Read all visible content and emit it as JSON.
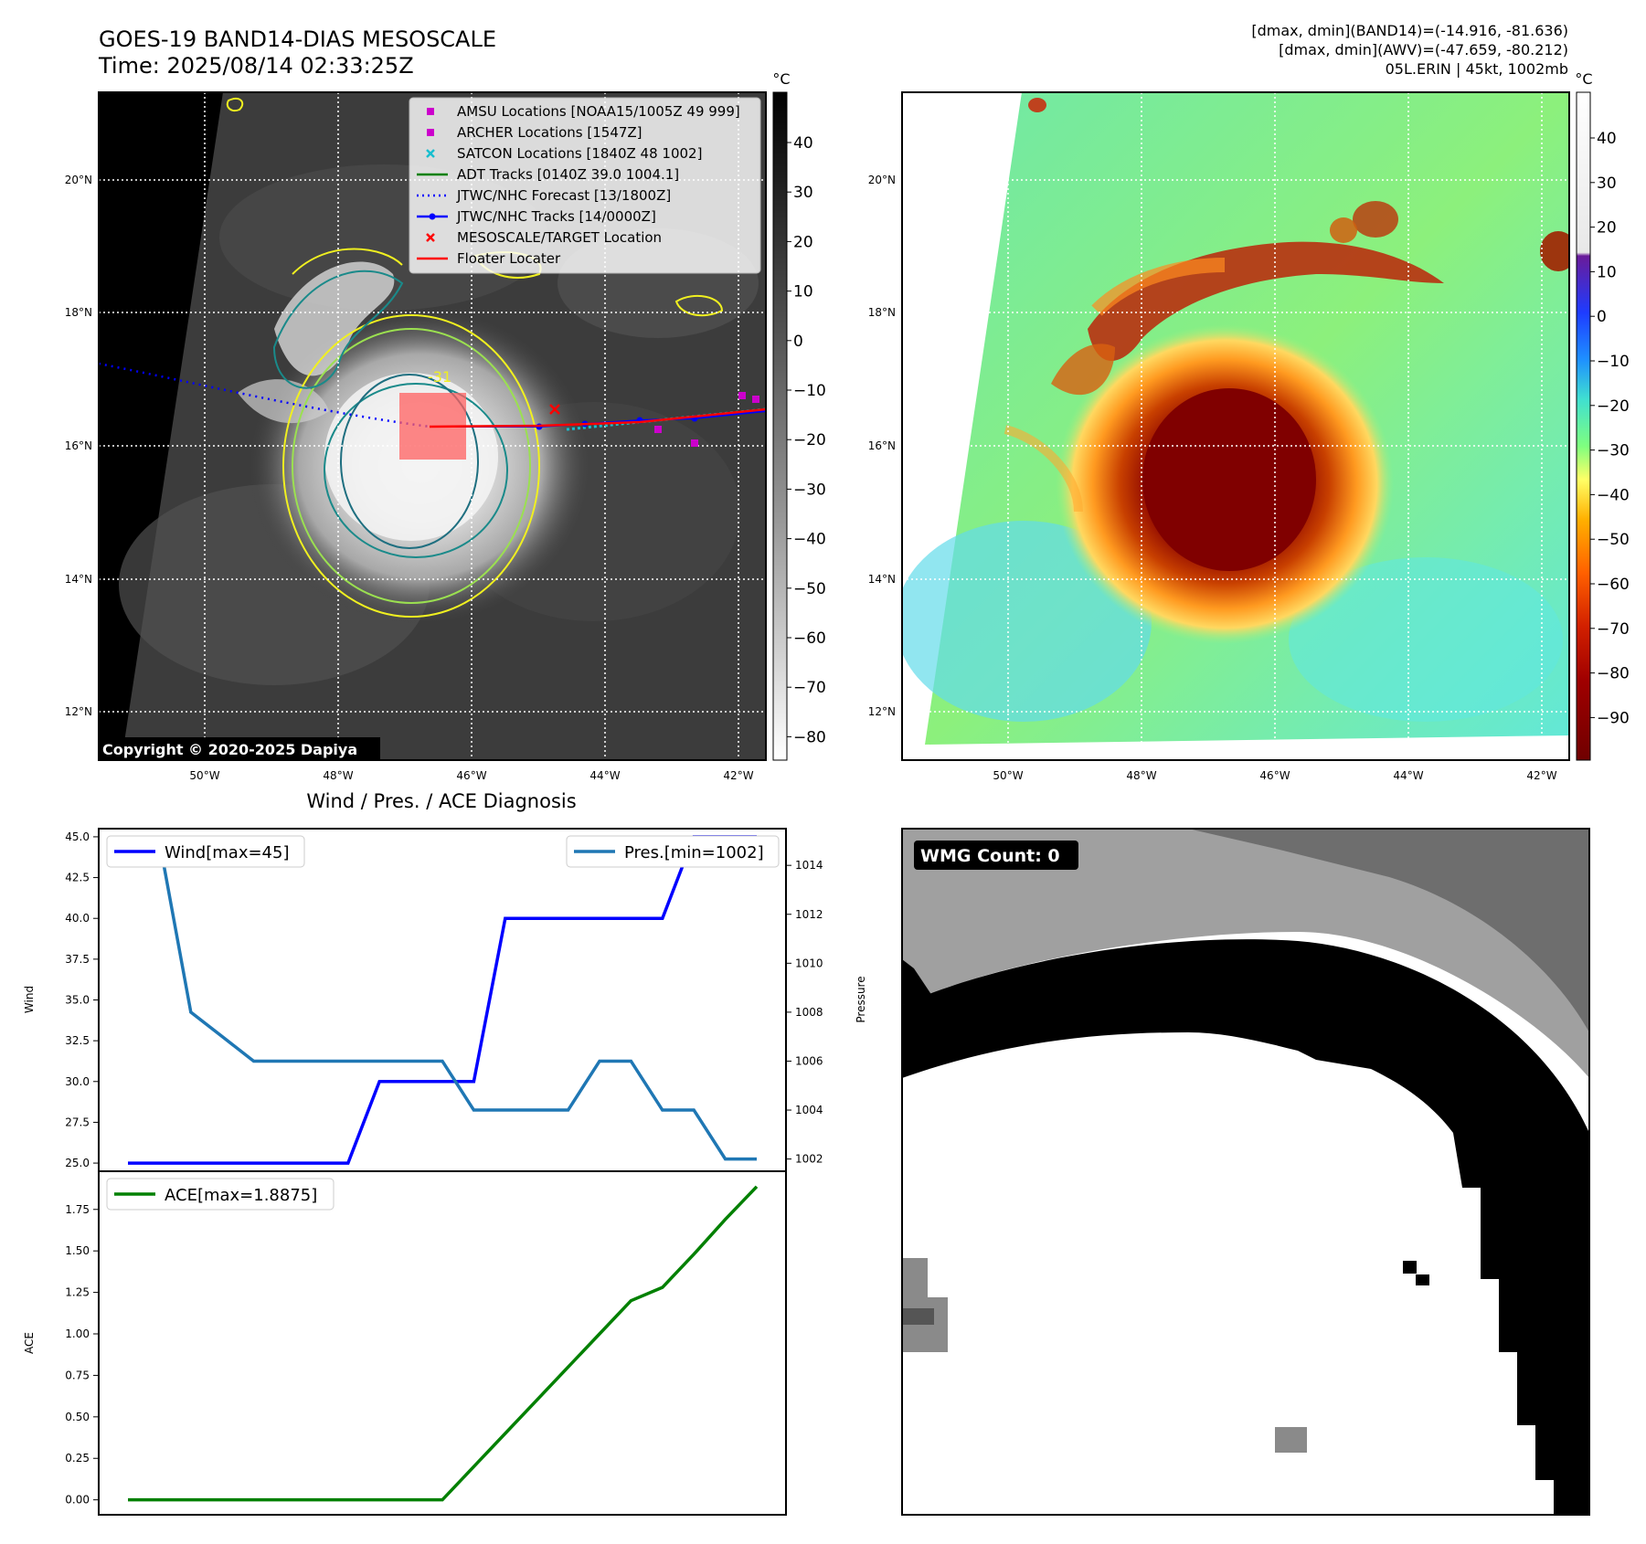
{
  "header": {
    "title": "GOES-19 BAND14-DIAS MESOSCALE",
    "time": "Time: 2025/08/14 02:33:25Z",
    "stats_line1": "[dmax, dmin](BAND14)=(-14.916, -81.636)",
    "stats_line2": "[dmax, dmin](AWV)=(-47.659, -80.212)",
    "stats_line3": "05L.ERIN | 45kt, 1002mb"
  },
  "map": {
    "lon_labels": [
      "50°W",
      "48°W",
      "46°W",
      "44°W",
      "42°W"
    ],
    "lat_labels": [
      "20°N",
      "18°N",
      "16°N",
      "14°N",
      "12°N"
    ],
    "copyright": "Copyright © 2020-2025 Dapiya",
    "contour_label": "-31",
    "legend": [
      {
        "label": "AMSU Locations [NOAA15/1005Z 49 999]",
        "kind": "square",
        "color": "#cc00cc"
      },
      {
        "label": "ARCHER Locations [1547Z]",
        "kind": "square",
        "color": "#cc00cc"
      },
      {
        "label": "SATCON Locations [1840Z 48 1002]",
        "kind": "x",
        "color": "#17becf"
      },
      {
        "label": "ADT Tracks [0140Z 39.0 1004.1]",
        "kind": "line",
        "color": "#008000"
      },
      {
        "label": "JTWC/NHC Forecast [13/1800Z]",
        "kind": "dotted",
        "color": "#0000ff"
      },
      {
        "label": "JTWC/NHC Tracks [14/0000Z]",
        "kind": "linedot",
        "color": "#0000ff"
      },
      {
        "label": "MESOSCALE/TARGET Location",
        "kind": "x",
        "color": "#ff0000"
      },
      {
        "label": "Floater Locater",
        "kind": "line",
        "color": "#ff0000"
      }
    ]
  },
  "colorbars": {
    "unit": "°C",
    "left_ticks": [
      "40",
      "30",
      "20",
      "10",
      "0",
      "−10",
      "−20",
      "−30",
      "−40",
      "−50",
      "−60",
      "−70",
      "−80"
    ],
    "right_ticks": [
      "40",
      "30",
      "20",
      "10",
      "0",
      "−10",
      "−20",
      "−30",
      "−40",
      "−50",
      "−60",
      "−70",
      "−80",
      "−90"
    ]
  },
  "wmg": {
    "label": "WMG Count: 0"
  },
  "chart_data": [
    {
      "type": "line",
      "title": "Wind / Pres. / ACE Diagnosis",
      "ylabel": "Wind",
      "y2label": "Pressure",
      "ylim": [
        24.5,
        45.5
      ],
      "y2lim": [
        1001.5,
        1015.5
      ],
      "yticks": [
        "45.0",
        "42.5",
        "40.0",
        "37.5",
        "35.0",
        "32.5",
        "30.0",
        "27.5",
        "25.0"
      ],
      "y2ticks": [
        "1014",
        "1012",
        "1010",
        "1008",
        "1006",
        "1004",
        "1002"
      ],
      "series": [
        {
          "name": "Wind[max=45]",
          "color": "#0000ff",
          "axis": "left",
          "values": [
            25,
            25,
            25,
            25,
            25,
            25,
            25,
            25,
            30,
            30,
            30,
            30,
            40,
            40,
            40,
            40,
            40,
            40,
            45,
            45,
            45
          ]
        },
        {
          "name": "Pres.[min=1002]",
          "color": "#1f77b4",
          "axis": "right",
          "values": [
            1015,
            1015,
            1008,
            1007,
            1006,
            1006,
            1006,
            1006,
            1006,
            1006,
            1006,
            1004,
            1004,
            1004,
            1004,
            1006,
            1006,
            1004,
            1004,
            1002,
            1002
          ]
        }
      ]
    },
    {
      "type": "line",
      "ylabel": "ACE",
      "ylim": [
        -0.09,
        1.98
      ],
      "yticks": [
        "1.75",
        "1.50",
        "1.25",
        "1.00",
        "0.75",
        "0.50",
        "0.25",
        "0.00"
      ],
      "series": [
        {
          "name": "ACE[max=1.8875]",
          "color": "#008000",
          "values": [
            0,
            0,
            0,
            0,
            0,
            0,
            0,
            0,
            0,
            0,
            0,
            0.2,
            0.4,
            0.6,
            0.8,
            1.0,
            1.2,
            1.28,
            1.48,
            1.69,
            1.8875
          ]
        }
      ]
    }
  ]
}
